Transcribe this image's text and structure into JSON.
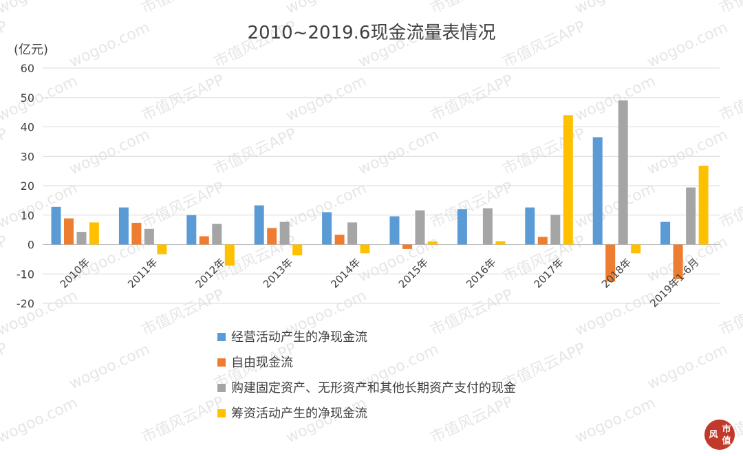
{
  "chart_data": {
    "type": "bar",
    "title": "2010~2019.6现金流量表情况",
    "unit_label": "(亿元)",
    "categories": [
      "2010年",
      "2011年",
      "2012年",
      "2013年",
      "2014年",
      "2015年",
      "2016年",
      "2017年",
      "2018年",
      "2019年1-6月"
    ],
    "ylim": [
      -20,
      60
    ],
    "yticks": [
      -20,
      -10,
      0,
      10,
      20,
      30,
      40,
      50,
      60
    ],
    "grid": true,
    "legend_position": "bottom",
    "series": [
      {
        "name": "经营活动产生的净现金流",
        "color": "#5b9bd5",
        "values": [
          12.8,
          12.6,
          10.0,
          13.3,
          11.0,
          9.6,
          12.0,
          12.6,
          36.5,
          7.7
        ]
      },
      {
        "name": "自由现金流",
        "color": "#ed7d31",
        "values": [
          8.9,
          7.4,
          2.8,
          5.6,
          3.3,
          -1.5,
          0,
          2.6,
          -12.6,
          -11.8
        ]
      },
      {
        "name": "购建固定资产、无形资产和其他长期资产支付的现金",
        "color": "#a5a5a5",
        "values": [
          4.3,
          5.3,
          7.0,
          7.7,
          7.5,
          11.6,
          12.3,
          10.1,
          49.0,
          19.4
        ]
      },
      {
        "name": "筹资活动产生的净现金流",
        "color": "#ffc000",
        "values": [
          7.5,
          -3.3,
          -7.2,
          -3.7,
          -3.0,
          1.0,
          1.1,
          44.0,
          -3.0,
          26.8
        ]
      }
    ]
  },
  "watermark": {
    "texts": [
      "市值风云APP",
      "wogoo.com"
    ],
    "stamp_chars": [
      "风",
      "市",
      "值"
    ],
    "stamp_color": "#c0392b"
  }
}
